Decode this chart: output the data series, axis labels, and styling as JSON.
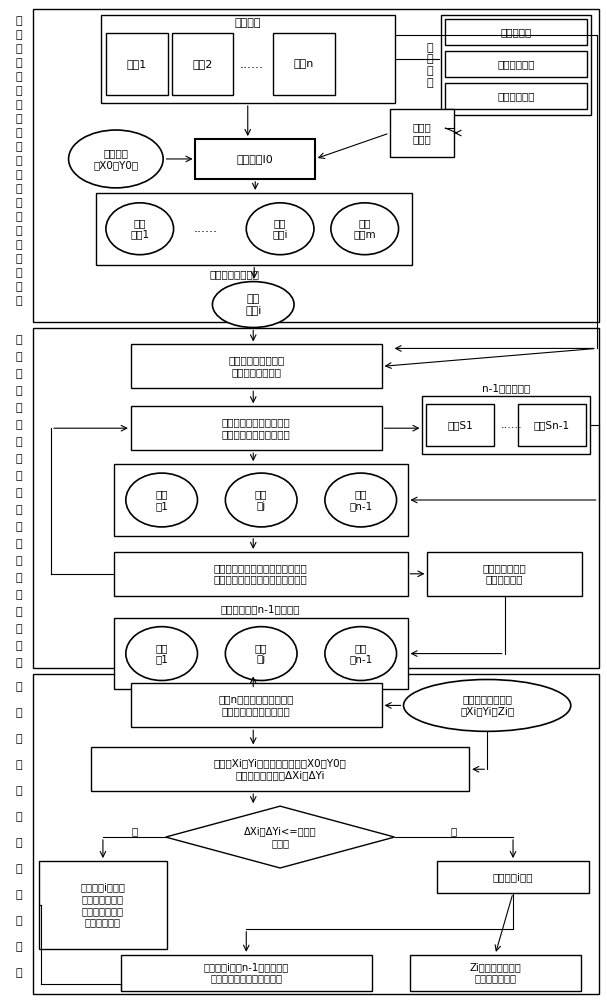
{
  "bg_color": "#ffffff",
  "line_color": "#000000",
  "s1_label": [
    "确",
    "定",
    "物",
    "方",
    "基",
    "元",
    "在",
    "基",
    "准",
    "影",
    "像",
    "上",
    "应",
    "对",
    "的",
    "多",
    "个",
    "待",
    "匹",
    "配",
    "点"
  ],
  "s2_label": [
    "对",
    "各",
    "待",
    "匹",
    "配",
    "点",
    "进",
    "行",
    "物",
    "方",
    "信",
    "息",
    "约",
    "束",
    "多",
    "视",
    "影",
    "像",
    "匹",
    "配"
  ],
  "s3_label": [
    "匹",
    "配",
    "结",
    "果",
    "物",
    "坐",
    "标",
    "一",
    "致",
    "性",
    "验",
    "证"
  ],
  "title_seq": "序列影像",
  "box_img1": "影像1",
  "box_img2": "影像2",
  "box_dots1": "......",
  "box_imgn": "影像n",
  "label_obj_info": "物\n方\n信\n息",
  "box_exterior": "外方位元素",
  "box_max_elev": "测区最大高程",
  "box_min_elev": "测区最小高程",
  "box_img_model": "影像成\n像模型",
  "ellipse_obj_ref": "物方基元\n（X0，Y0）",
  "box_base_img": "基准影像I0",
  "label_iter": "逐个取出待匹配点",
  "ellipse_cand1": "待匹\n配点1",
  "ellipse_dots2": "......",
  "ellipse_candi": "待匹\n配点i",
  "ellipse_candm": "待匹\n配点m",
  "ellipse_point_i": "待匹\n配点i",
  "box_calc_3d": "计算物方搜索光线的\n两个端点三维坐标",
  "box_epipolar": "确定各搜索影像上的像方\n同名搜索核线的直线方程",
  "label_search_imgs": "n-1幅搜索影像",
  "box_search1": "搜索S1",
  "box_dots_search": "......",
  "box_searchn": "搜索Sn-1",
  "ellipse_cand_1": "候选\n点1",
  "ellipse_cand_j": "候选\n点j",
  "ellipse_cand_n1": "候选\n点n-1",
  "box_similarity": "计算待匹配点和多个候选同名点的\n基于灰度和特征的多像匹配相似度",
  "box_max_sim": "基于最大相似度\n确定同名像点",
  "label_corr_pts": "搜索影像上的n-1个同名点",
  "ellipse_corr1": "同名\n点1",
  "ellipse_corrj": "同名\n点j",
  "ellipse_corrn1": "同名\n点n-1",
  "box_bundle": "基于n幅影像的多像光束法\n平差的物方三维坐标解算",
  "ellipse_3d": "地物点的三维坐标\n（Xi，Yi，Zi）",
  "box_calc_diff": "计算（Xi，Yi）与物方基元的（X0，Y0）\n之间的较差绝对值ΔXi、ΔYi",
  "diamond_thresh": "ΔXi和ΔYi<=设定的\n阈值否",
  "box_invalid": "待匹配点i无效，\n舍弃其像方多视\n匹配结果与物方\n坐标计算结果",
  "box_valid": "待匹配点i有效",
  "box_result_group": "待匹配点i及其n-1个同名像点\n作为一组像方匹配结果返回",
  "box_elev_return": "Zi作为物方基元的\n一个高程值返回",
  "arrow_yes": "是",
  "arrow_no": "否"
}
